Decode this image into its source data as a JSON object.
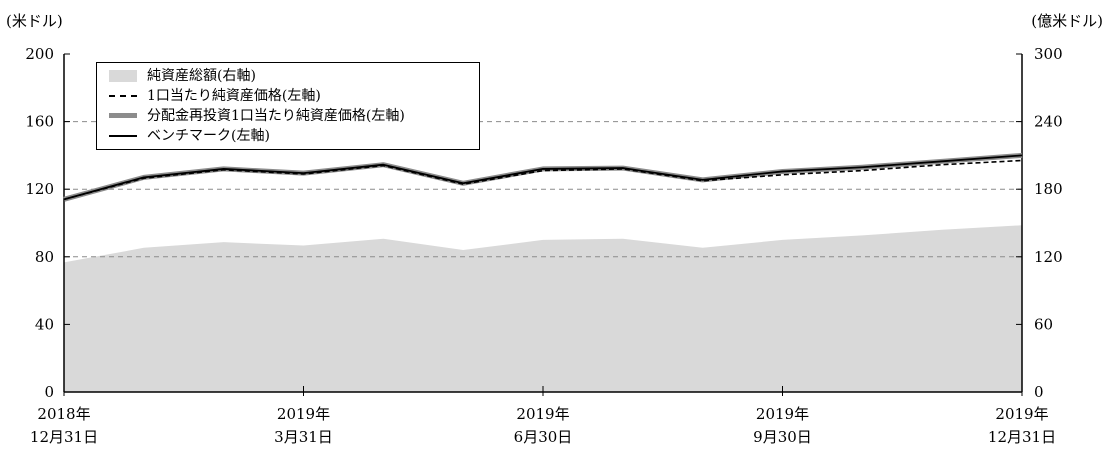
{
  "chart_data": {
    "type": "area+line",
    "unit_left": "(米ドル)",
    "unit_right": "(億米ドル)",
    "left_axis": {
      "ticks": [
        "0",
        "40",
        "80",
        "120",
        "160",
        "200"
      ],
      "ylim": [
        0,
        200
      ]
    },
    "right_axis": {
      "ticks": [
        "0",
        "60",
        "120",
        "180",
        "240",
        "300"
      ],
      "ylim": [
        0,
        300
      ]
    },
    "gridlines": [
      80,
      120,
      160
    ],
    "x_labels": [
      {
        "line1": "2018年",
        "line2": "12月31日"
      },
      {
        "line1": "2019年",
        "line2": "3月31日"
      },
      {
        "line1": "2019年",
        "line2": "6月30日"
      },
      {
        "line1": "2019年",
        "line2": "9月30日"
      },
      {
        "line1": "2019年",
        "line2": "12月31日"
      }
    ],
    "x": [
      "2018-12-31",
      "2019-01-31",
      "2019-02-28",
      "2019-03-31",
      "2019-04-30",
      "2019-05-31",
      "2019-06-30",
      "2019-07-31",
      "2019-08-31",
      "2019-09-30",
      "2019-10-31",
      "2019-11-30",
      "2019-12-31"
    ],
    "series": [
      {
        "name": "純資産総額(右軸)",
        "axis": "right",
        "style": "area",
        "color": "#d9d9d9",
        "values": [
          115,
          128,
          133,
          130,
          136,
          126,
          135,
          136,
          128,
          135,
          139,
          144,
          148
        ]
      },
      {
        "name": "1口当たり純資産価格(左軸)",
        "axis": "left",
        "style": "dash",
        "color": "#000000",
        "values": [
          114,
          126.5,
          131.5,
          129,
          134,
          123,
          131,
          132,
          125,
          128.5,
          131,
          134.5,
          137
        ]
      },
      {
        "name": "分配金再投資1口当たり純資産価格(左軸)",
        "axis": "left",
        "style": "grey",
        "color": "#8c8c8c",
        "values": [
          114,
          127,
          132,
          129.5,
          134.5,
          123.5,
          132,
          132.5,
          125.5,
          130.5,
          133,
          136.5,
          140
        ]
      },
      {
        "name": "ベンチマーク(左軸)",
        "axis": "left",
        "style": "solid",
        "color": "#000000",
        "values": [
          114,
          127,
          132,
          129.5,
          134.5,
          123.5,
          132,
          132.5,
          125.5,
          130.5,
          133,
          136.5,
          140
        ]
      }
    ],
    "legend": [
      "純資産総額(右軸)",
      "1口当たり純資産価格(左軸)",
      "分配金再投資1口当たり純資産価格(左軸)",
      "ベンチマーク(左軸)"
    ],
    "legend_position": "top-left"
  }
}
